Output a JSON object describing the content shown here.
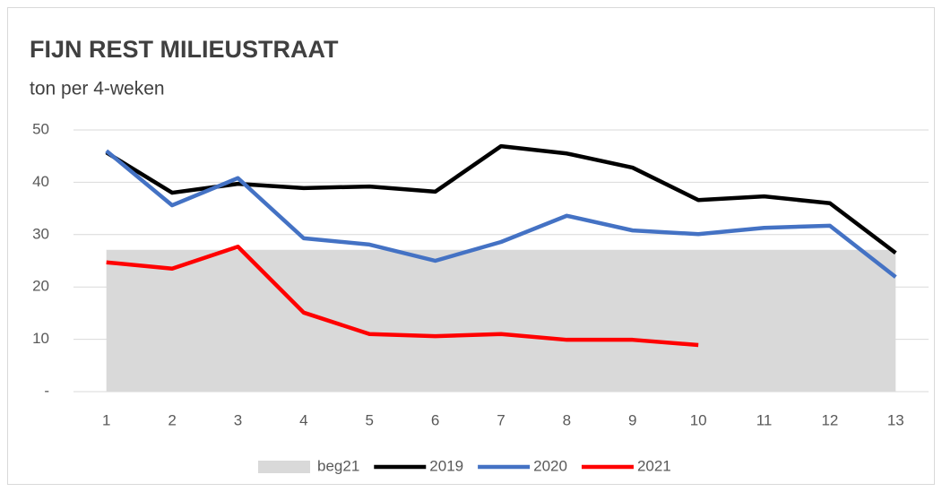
{
  "chart_data": {
    "type": "line",
    "title": "FIJN REST MILIEUSTRAAT",
    "subtitle": "ton per 4-weken",
    "categories": [
      "1",
      "2",
      "3",
      "4",
      "5",
      "6",
      "7",
      "8",
      "9",
      "10",
      "11",
      "12",
      "13"
    ],
    "series": [
      {
        "name": "beg21",
        "type": "area",
        "color": "#d9d9d9",
        "values": [
          27.1,
          27.1,
          27.1,
          27.1,
          27.1,
          27.1,
          27.1,
          27.1,
          27.1,
          27.1,
          27.1,
          27.1,
          27.1
        ]
      },
      {
        "name": "2019",
        "color": "#000000",
        "values": [
          45.7,
          38.0,
          39.7,
          38.9,
          39.2,
          38.2,
          46.9,
          45.5,
          42.8,
          36.6,
          37.3,
          36.0,
          26.5
        ]
      },
      {
        "name": "2020",
        "color": "#4472c4",
        "values": [
          46.0,
          35.6,
          40.8,
          29.3,
          28.1,
          25.0,
          28.6,
          33.6,
          30.8,
          30.1,
          31.3,
          31.7,
          21.9
        ]
      },
      {
        "name": "2021",
        "color": "#ff0000",
        "values": [
          24.7,
          23.5,
          27.7,
          15.1,
          11.0,
          10.6,
          11.0,
          9.9,
          9.9,
          8.9,
          null,
          null,
          null
        ]
      }
    ],
    "ylim": [
      0,
      50
    ],
    "yticks": [
      {
        "value": 0,
        "label": "-"
      },
      10,
      20,
      30,
      40,
      50
    ],
    "grid": true,
    "legend": "bottom"
  }
}
